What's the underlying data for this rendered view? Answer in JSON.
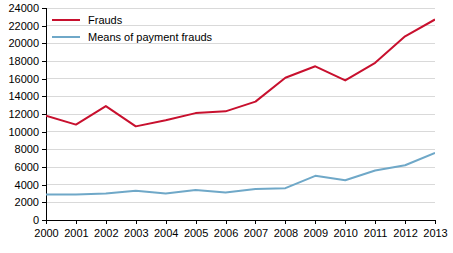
{
  "chart_data": {
    "type": "line",
    "x": [
      2000,
      2001,
      2002,
      2003,
      2004,
      2005,
      2006,
      2007,
      2008,
      2009,
      2010,
      2011,
      2012,
      2013
    ],
    "series": [
      {
        "name": "Frauds",
        "color": "#c8102e",
        "values": [
          11800,
          10800,
          12900,
          10600,
          11300,
          12100,
          12300,
          13400,
          16100,
          17400,
          15800,
          17800,
          20800,
          22700
        ]
      },
      {
        "name": "Means of payment frauds",
        "color": "#6fa8c8",
        "values": [
          2900,
          2900,
          3000,
          3300,
          3000,
          3400,
          3100,
          3500,
          3600,
          5000,
          4500,
          5600,
          6200,
          7600
        ]
      }
    ],
    "xlim": [
      2000,
      2013
    ],
    "xticks": [
      2000,
      2001,
      2002,
      2003,
      2004,
      2005,
      2006,
      2007,
      2008,
      2009,
      2010,
      2011,
      2012,
      2013
    ],
    "ylim": [
      0,
      24000
    ],
    "yticks": [
      0,
      2000,
      4000,
      6000,
      8000,
      10000,
      12000,
      14000,
      16000,
      18000,
      20000,
      22000,
      24000
    ],
    "grid": true,
    "legend": "upper left"
  }
}
